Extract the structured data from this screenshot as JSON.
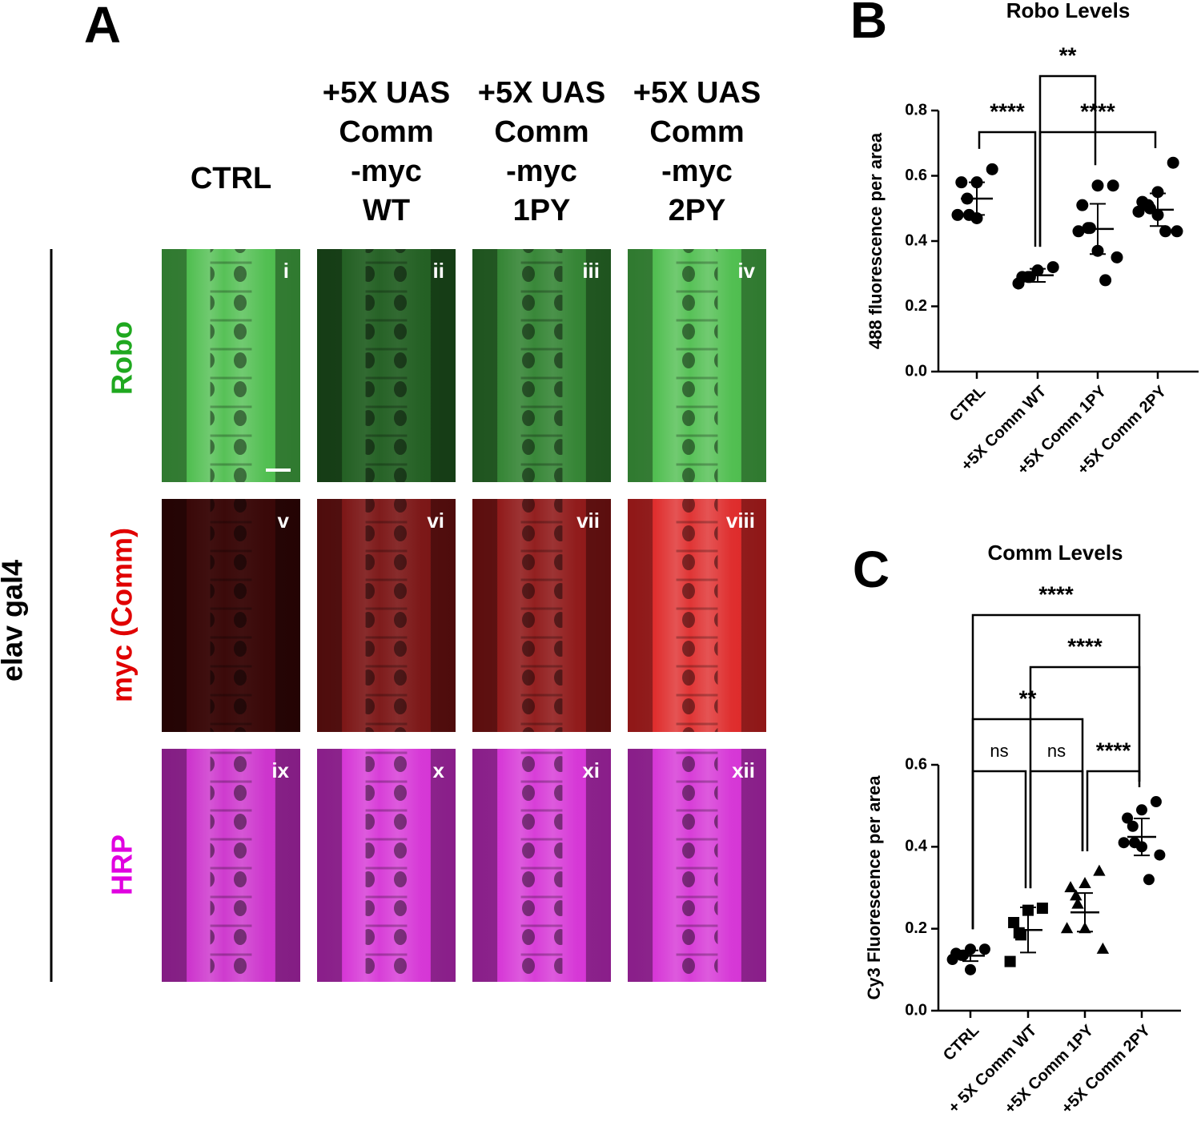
{
  "panel_a": {
    "letter": "A",
    "columns": [
      [
        "CTRL"
      ],
      [
        "+5X UAS",
        "Comm",
        "-myc",
        "WT"
      ],
      [
        "+5X UAS",
        "Comm",
        "-myc",
        "1PY"
      ],
      [
        "+5X UAS",
        "Comm",
        "-myc",
        "2PY"
      ]
    ],
    "rows": [
      "Robo",
      "myc (Comm)",
      "HRP"
    ],
    "side_label": "elav gal4",
    "panel_labels": [
      [
        "i",
        "ii",
        "iii",
        "iv"
      ],
      [
        "v",
        "vi",
        "vii",
        "viii"
      ],
      [
        "ix",
        "x",
        "xi",
        "xii"
      ]
    ]
  },
  "chart_data": [
    {
      "type": "scatter",
      "letter": "B",
      "title": "Robo Levels",
      "y_label": "488 fluorescence per area",
      "categories": [
        "CTRL",
        "+5X Comm WT",
        "+5X Comm 1PY",
        "+5X Comm 2PY"
      ],
      "markers": [
        "circle",
        "circle",
        "circle",
        "circle"
      ],
      "color": "#000000",
      "points": [
        [
          0.62,
          0.58,
          0.58,
          0.53,
          0.48,
          0.48,
          0.47
        ],
        [
          0.32,
          0.31,
          0.29,
          0.29,
          0.29,
          0.27
        ],
        [
          0.57,
          0.57,
          0.51,
          0.44,
          0.44,
          0.43,
          0.37,
          0.35,
          0.28
        ],
        [
          0.64,
          0.55,
          0.52,
          0.51,
          0.5,
          0.49,
          0.48,
          0.43,
          0.43
        ]
      ],
      "means": [
        0.53,
        0.295,
        0.437,
        0.496
      ],
      "errors": [
        0.05,
        0.02,
        0.077,
        0.05
      ],
      "ylim": [
        0,
        0.8
      ],
      "yticks": [
        {
          "value": 0,
          "label": "0.0"
        },
        0.2,
        0.4,
        0.6,
        0.8
      ],
      "annotations": [
        {
          "text": "****",
          "between": [
            "CTRL",
            "+5X Comm WT"
          ]
        },
        {
          "text": "****",
          "between": [
            "+5X Comm WT",
            "+5X Comm 2PY"
          ]
        },
        {
          "text": "**",
          "between": [
            "+5X Comm WT",
            "+5X Comm 1PY"
          ]
        }
      ]
    },
    {
      "type": "scatter",
      "letter": "C",
      "title": "Comm Levels",
      "y_label": "Cy3 Fluorescence per area",
      "categories": [
        "CTRL",
        "+ 5X Comm WT",
        "+5X Comm 1PY",
        "+5X Comm 2PY"
      ],
      "markers": [
        "circle",
        "square",
        "triangle",
        "circle"
      ],
      "color": "#000000",
      "points": [
        [
          0.15,
          0.15,
          0.14,
          0.135,
          0.135,
          0.125,
          0.1
        ],
        [
          0.25,
          0.245,
          0.215,
          0.19,
          0.185,
          0.12
        ],
        [
          0.34,
          0.31,
          0.3,
          0.28,
          0.26,
          0.2,
          0.2,
          0.15
        ],
        [
          0.51,
          0.49,
          0.47,
          0.45,
          0.41,
          0.41,
          0.4,
          0.38,
          0.32
        ]
      ],
      "means": [
        0.134,
        0.197,
        0.24,
        0.424
      ],
      "errors": [
        0.013,
        0.055,
        0.047,
        0.045
      ],
      "ylim": [
        0,
        0.6
      ],
      "yticks": [
        {
          "value": 0,
          "label": "0.0"
        },
        0.2,
        0.4,
        0.6
      ],
      "annotations": [
        {
          "text": "ns",
          "between": [
            "CTRL",
            "+ 5X Comm WT"
          ]
        },
        {
          "text": "ns",
          "between": [
            "+ 5X Comm WT",
            "+5X Comm 1PY"
          ]
        },
        {
          "text": "**",
          "between": [
            "CTRL",
            "+5X Comm 1PY"
          ]
        },
        {
          "text": "****",
          "between": [
            "+5X Comm 1PY",
            "+5X Comm 2PY"
          ]
        },
        {
          "text": "****",
          "between": [
            "+ 5X Comm WT",
            "+5X Comm 2PY"
          ]
        },
        {
          "text": "****",
          "between": [
            "CTRL",
            "+5X Comm 2PY"
          ]
        }
      ]
    }
  ]
}
